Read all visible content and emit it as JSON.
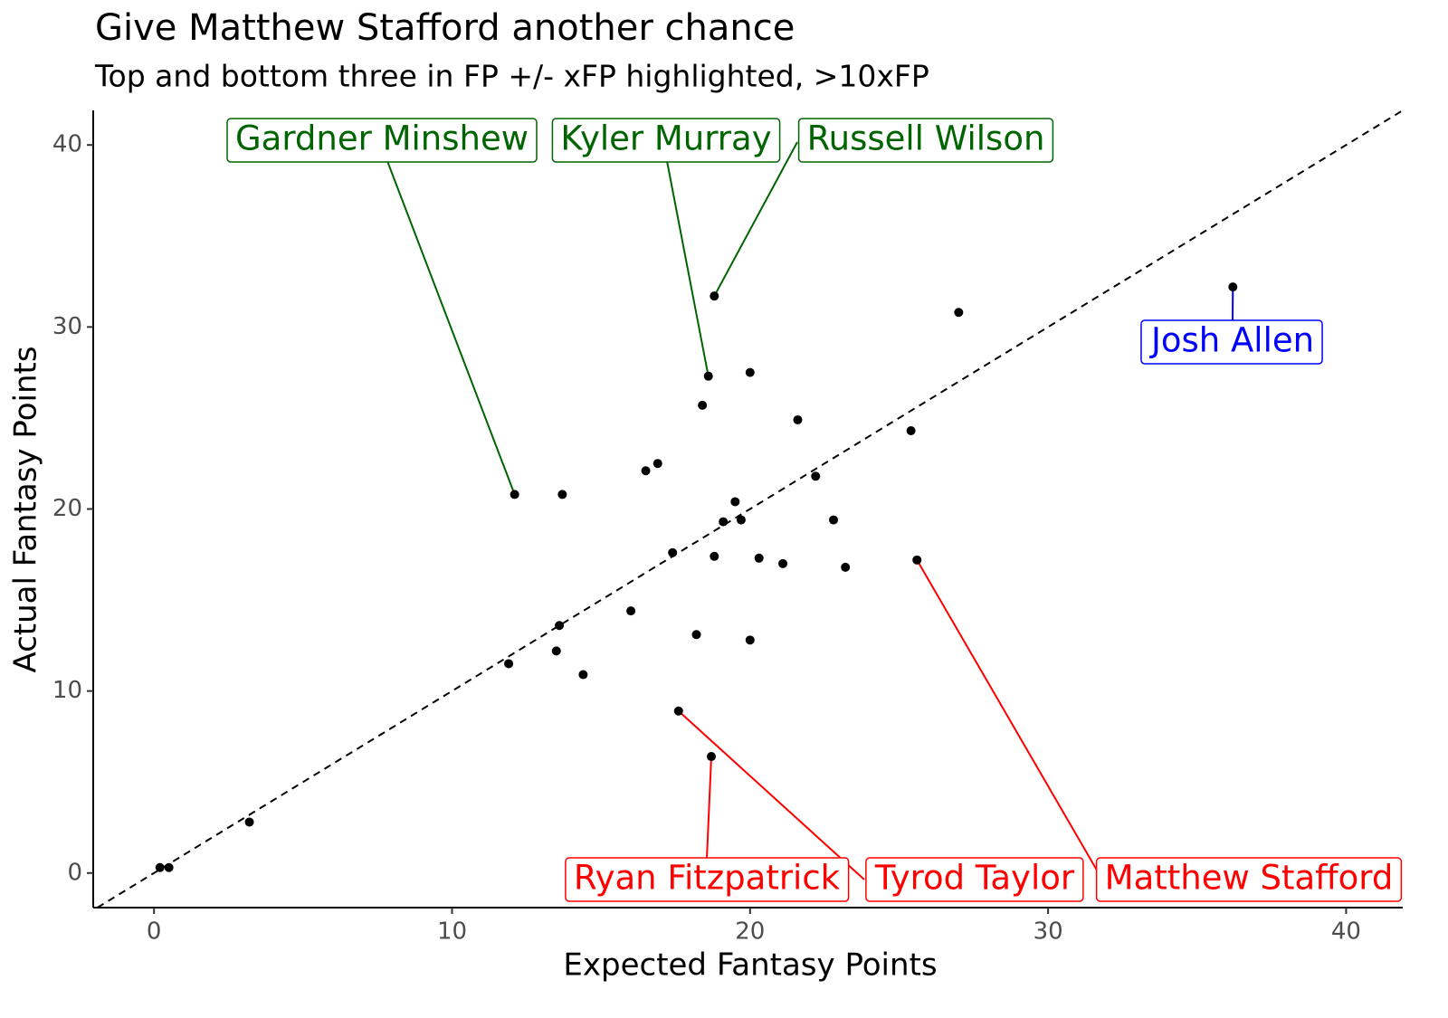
{
  "chart_data": {
    "type": "scatter",
    "title": "Give Matthew Stafford another chance",
    "subtitle": "Top and bottom three in FP +/- xFP highlighted, >10xFP",
    "x_label": "Expected Fantasy Points",
    "y_label": "Actual Fantasy Points",
    "x": [
      0.2,
      0.5,
      3.2,
      11.9,
      12.1,
      13.7,
      13.5,
      13.6,
      14.4,
      16.0,
      16.5,
      16.9,
      17.4,
      17.6,
      18.2,
      18.4,
      18.6,
      18.7,
      18.8,
      18.8,
      19.1,
      19.5,
      19.7,
      20.0,
      20.0,
      20.3,
      21.1,
      21.6,
      22.2,
      22.8,
      23.2,
      25.4,
      25.6,
      27.0,
      36.2
    ],
    "y": [
      0.3,
      0.3,
      2.8,
      11.5,
      20.8,
      20.8,
      12.2,
      13.6,
      10.9,
      14.4,
      22.1,
      22.5,
      17.6,
      8.9,
      13.1,
      25.7,
      27.3,
      6.4,
      31.7,
      17.4,
      19.3,
      20.4,
      19.4,
      27.5,
      12.8,
      17.3,
      17.0,
      24.9,
      21.8,
      19.4,
      16.8,
      24.3,
      17.2,
      30.8,
      32.2
    ],
    "color": "#000000",
    "annotations": [
      {
        "text": "Gardner Minshew",
        "point": 4,
        "color": "#006400"
      },
      {
        "text": "Kyler Murray",
        "point": 16,
        "color": "#006400"
      },
      {
        "text": "Russell Wilson",
        "point": 18,
        "color": "#006400"
      },
      {
        "text": "Josh Allen",
        "point": 34,
        "color": "#0000ff"
      },
      {
        "text": "Ryan Fitzpatrick",
        "point": 17,
        "color": "#ff0000"
      },
      {
        "text": "Tyrod Taylor",
        "point": 13,
        "color": "#ff0000"
      },
      {
        "text": "Matthew Stafford",
        "point": 32,
        "color": "#ff0000"
      }
    ],
    "identity_line": true,
    "xlim": [
      -2.04,
      41.9
    ],
    "ylim": [
      -1.9,
      41.9
    ],
    "xticks": [
      0,
      10,
      20,
      30,
      40
    ],
    "yticks": [
      0,
      10,
      20,
      30,
      40
    ]
  }
}
